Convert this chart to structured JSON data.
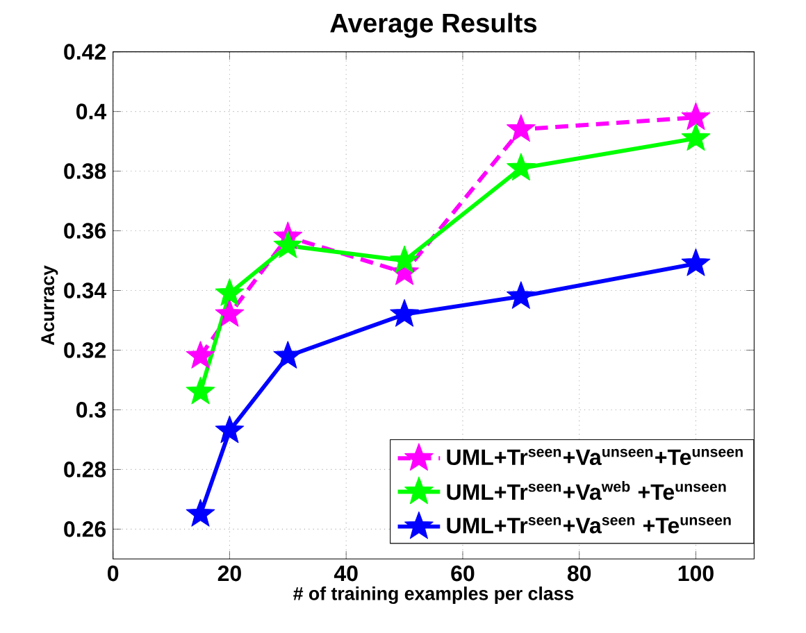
{
  "chart_data": {
    "type": "line",
    "title": "Average Results",
    "xlabel": "# of training examples per class",
    "ylabel": "Acurracy",
    "x": [
      15,
      20,
      30,
      50,
      70,
      100
    ],
    "series": [
      {
        "name": "UML+Tr$^{seen}$+Va$^{unseen}$+Te$^{unseen}$",
        "color": "#ff00ff",
        "line_style": "dashed",
        "values": [
          0.318,
          0.332,
          0.358,
          0.346,
          0.394,
          0.398
        ]
      },
      {
        "name": "UML+Tr$^{seen}$+Va$^{web}$   +Te$^{unseen}$",
        "color": "#00ff00",
        "line_style": "solid",
        "values": [
          0.306,
          0.339,
          0.355,
          0.35,
          0.381,
          0.391
        ]
      },
      {
        "name": "UML+Tr$^{seen}$+Va$^{seen}$   +Te$^{unseen}$",
        "color": "#0000ff",
        "line_style": "solid",
        "values": [
          0.265,
          0.293,
          0.318,
          0.332,
          0.338,
          0.349
        ]
      }
    ],
    "xlim": [
      0,
      110
    ],
    "xticks": [
      0,
      20,
      40,
      60,
      80,
      100
    ],
    "ylim": [
      0.25,
      0.42
    ],
    "yticks": [
      0.26,
      0.28,
      {
        "value": 0.3,
        "label": "0.3"
      },
      0.32,
      0.34,
      0.36,
      0.38,
      {
        "value": 0.4,
        "label": "0.4"
      },
      0.42
    ],
    "grid": true,
    "legend": "bottom right",
    "marker": "star"
  }
}
